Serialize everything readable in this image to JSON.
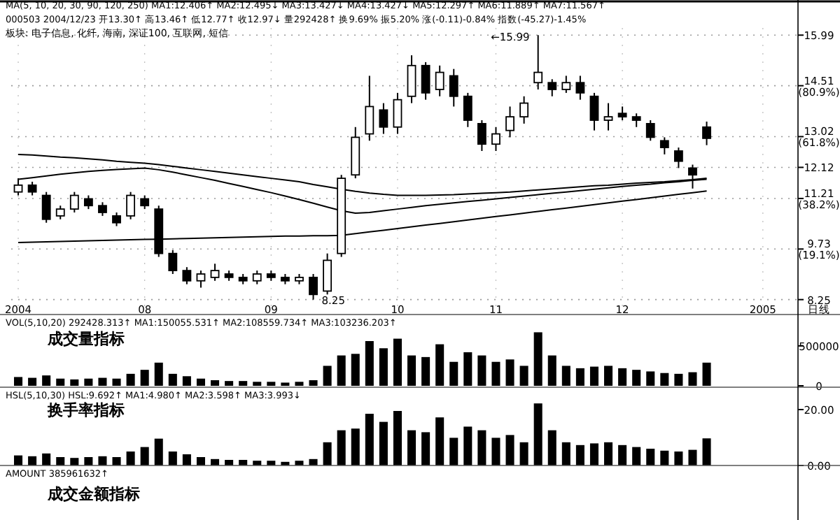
{
  "chart_data": [
    {
      "type": "candlestick",
      "title": "MA(5, 10, 20, 30, 90, 120, 250) MA1:12.406↑ MA2:12.495↓ MA3:13.427↓ MA4:13.427↓ MA5:12.297↑ MA6:11.889↑ MA7:11.567↑",
      "subtitle": "000503 2004/12/23 开13.30↑ 高13.46↑ 低12.77↑ 收12.97↓ 量292428↑ 换9.69% 振5.20% 涨(-0.11)-0.84% 指数(-45.27)-1.45%",
      "categories": [
        "2004",
        null,
        null,
        null,
        null,
        null,
        null,
        null,
        null,
        "08",
        null,
        null,
        null,
        null,
        null,
        null,
        null,
        null,
        "09",
        null,
        null,
        null,
        null,
        null,
        null,
        null,
        null,
        "10",
        null,
        null,
        null,
        null,
        null,
        null,
        "11",
        null,
        null,
        null,
        null,
        null,
        null,
        null,
        null,
        "12",
        null,
        null,
        null,
        null,
        null,
        null,
        null,
        null,
        null,
        "2005",
        null,
        null
      ],
      "ohlc": [
        [
          11.4,
          11.8,
          11.3,
          11.6
        ],
        [
          11.6,
          11.7,
          11.3,
          11.4
        ],
        [
          11.3,
          11.4,
          10.5,
          10.6
        ],
        [
          10.7,
          11.0,
          10.6,
          10.9
        ],
        [
          10.9,
          11.4,
          10.8,
          11.3
        ],
        [
          11.2,
          11.3,
          10.9,
          11.0
        ],
        [
          11.0,
          11.1,
          10.7,
          10.8
        ],
        [
          10.7,
          10.8,
          10.4,
          10.5
        ],
        [
          10.7,
          11.4,
          10.6,
          11.3
        ],
        [
          11.2,
          11.3,
          10.9,
          11.0
        ],
        [
          10.9,
          11.0,
          9.5,
          9.6
        ],
        [
          9.6,
          9.7,
          9.0,
          9.1
        ],
        [
          9.1,
          9.2,
          8.7,
          8.8
        ],
        [
          8.8,
          9.1,
          8.6,
          9.0
        ],
        [
          8.9,
          9.3,
          8.8,
          9.1
        ],
        [
          9.0,
          9.1,
          8.8,
          8.9
        ],
        [
          8.9,
          9.0,
          8.7,
          8.8
        ],
        [
          8.8,
          9.1,
          8.7,
          9.0
        ],
        [
          9.0,
          9.1,
          8.8,
          8.9
        ],
        [
          8.9,
          9.0,
          8.7,
          8.8
        ],
        [
          8.8,
          9.0,
          8.7,
          8.9
        ],
        [
          8.9,
          9.0,
          8.25,
          8.4
        ],
        [
          8.5,
          9.6,
          8.4,
          9.4
        ],
        [
          9.6,
          11.9,
          9.5,
          11.8
        ],
        [
          11.9,
          13.3,
          11.8,
          13.0
        ],
        [
          13.1,
          14.8,
          12.9,
          13.9
        ],
        [
          13.8,
          14.0,
          13.1,
          13.3
        ],
        [
          13.3,
          14.3,
          13.1,
          14.1
        ],
        [
          14.2,
          15.4,
          14.0,
          15.1
        ],
        [
          15.1,
          15.2,
          14.1,
          14.3
        ],
        [
          14.4,
          15.1,
          14.2,
          14.9
        ],
        [
          14.8,
          15.0,
          13.9,
          14.2
        ],
        [
          14.2,
          14.3,
          13.3,
          13.5
        ],
        [
          13.4,
          13.5,
          12.6,
          12.8
        ],
        [
          12.8,
          13.3,
          12.6,
          13.1
        ],
        [
          13.2,
          13.9,
          13.0,
          13.6
        ],
        [
          13.6,
          14.2,
          13.4,
          14.0
        ],
        [
          14.6,
          15.99,
          14.4,
          14.9
        ],
        [
          14.6,
          14.7,
          14.2,
          14.4
        ],
        [
          14.4,
          14.8,
          14.3,
          14.6
        ],
        [
          14.6,
          14.8,
          14.1,
          14.3
        ],
        [
          14.2,
          14.3,
          13.2,
          13.5
        ],
        [
          13.5,
          14.0,
          13.2,
          13.6
        ],
        [
          13.7,
          13.9,
          13.5,
          13.6
        ],
        [
          13.6,
          13.7,
          13.3,
          13.5
        ],
        [
          13.4,
          13.5,
          12.9,
          13.0
        ],
        [
          12.9,
          13.0,
          12.5,
          12.7
        ],
        [
          12.6,
          12.7,
          12.1,
          12.3
        ],
        [
          12.1,
          12.2,
          11.5,
          11.9
        ],
        [
          13.3,
          13.46,
          12.77,
          12.97
        ],
        null,
        null,
        null,
        null,
        null,
        null
      ],
      "series": [
        {
          "type": "line",
          "color": "#000000",
          "values": [
            12.5,
            12.48,
            12.45,
            12.42,
            12.4,
            12.37,
            12.34,
            12.3,
            12.27,
            12.24,
            12.2,
            12.15,
            12.1,
            12.05,
            12.0,
            11.95,
            11.9,
            11.85,
            11.8,
            11.75,
            11.7,
            11.62,
            11.55,
            11.48,
            11.42,
            11.37,
            11.33,
            11.3,
            11.3,
            11.3,
            11.31,
            11.32,
            11.34,
            11.36,
            11.38,
            11.4,
            11.43,
            11.46,
            11.49,
            11.52,
            11.55,
            11.58,
            11.6,
            11.63,
            11.66,
            11.68,
            11.7,
            11.73,
            11.76,
            11.8,
            null,
            null,
            null,
            null,
            null,
            null
          ]
        },
        {
          "type": "line",
          "color": "#000000",
          "values": [
            11.77,
            11.82,
            11.87,
            11.92,
            11.96,
            12.0,
            12.03,
            12.06,
            12.08,
            12.1,
            12.05,
            11.98,
            11.9,
            11.82,
            11.74,
            11.65,
            11.56,
            11.47,
            11.38,
            11.28,
            11.18,
            11.07,
            10.96,
            10.85,
            10.78,
            10.8,
            10.85,
            10.9,
            10.95,
            11.0,
            11.04,
            11.08,
            11.12,
            11.16,
            11.2,
            11.24,
            11.28,
            11.32,
            11.36,
            11.4,
            11.44,
            11.48,
            11.52,
            11.56,
            11.6,
            11.63,
            11.67,
            11.7,
            11.74,
            11.77,
            null,
            null,
            null,
            null,
            null,
            null
          ]
        },
        {
          "type": "line",
          "color": "#000000",
          "values": [
            9.92,
            9.93,
            9.94,
            9.95,
            9.96,
            9.97,
            9.98,
            9.99,
            10.0,
            10.01,
            10.02,
            10.03,
            10.04,
            10.05,
            10.06,
            10.07,
            10.08,
            10.09,
            10.1,
            10.11,
            10.11,
            10.12,
            10.12,
            10.13,
            10.18,
            10.23,
            10.28,
            10.33,
            10.38,
            10.43,
            10.48,
            10.53,
            10.58,
            10.63,
            10.68,
            10.73,
            10.78,
            10.83,
            10.88,
            10.93,
            10.98,
            11.03,
            11.08,
            11.13,
            11.18,
            11.23,
            11.28,
            11.33,
            11.38,
            11.43,
            null,
            null,
            null,
            null,
            null,
            null
          ]
        }
      ],
      "ylim": [
        8.1,
        16.2
      ],
      "yticks": [
        8.25,
        {
          "value": 9.73,
          "label": "9.73 (19.1%)"
        },
        {
          "value": 11.21,
          "label": "11.21 (38.2%)"
        },
        12.12,
        {
          "value": 13.02,
          "label": "13.02 (61.8%)"
        },
        {
          "value": 14.51,
          "label": "14.51 (80.9%)"
        },
        15.99
      ],
      "grid": true,
      "annotations": [
        "←15.99",
        "8.25",
        "板块: 电子信息, 化纤, 海南, 深证100, 互联网, 短信",
        "日线"
      ]
    },
    {
      "type": "bar",
      "title": "VOL(5,10,20) 292428.313↑ MA1:150055.531↑ MA2:108559.734↑ MA3:103236.203↑",
      "annotations": [
        "成交量指标"
      ],
      "categories": [
        "2004",
        null,
        null,
        null,
        null,
        null,
        null,
        null,
        null,
        "08",
        null,
        null,
        null,
        null,
        null,
        null,
        null,
        null,
        "09",
        null,
        null,
        null,
        null,
        null,
        null,
        null,
        null,
        "10",
        null,
        null,
        null,
        null,
        null,
        null,
        "11",
        null,
        null,
        null,
        null,
        null,
        null,
        null,
        null,
        "12",
        null,
        null,
        null,
        null,
        null,
        null,
        null,
        null,
        null,
        "2005",
        null,
        null
      ],
      "color": "#000000",
      "values": [
        110000,
        100000,
        130000,
        90000,
        80000,
        90000,
        100000,
        90000,
        150000,
        200000,
        290000,
        150000,
        120000,
        90000,
        70000,
        60000,
        60000,
        50000,
        50000,
        40000,
        50000,
        70000,
        250000,
        380000,
        400000,
        560000,
        470000,
        590000,
        380000,
        360000,
        520000,
        300000,
        420000,
        380000,
        300000,
        330000,
        250000,
        670000,
        380000,
        250000,
        220000,
        240000,
        250000,
        220000,
        200000,
        180000,
        160000,
        150000,
        170000,
        290000,
        null,
        null,
        null,
        null,
        null,
        null
      ],
      "ylim": [
        0,
        700000
      ],
      "yticks": [
        0,
        500000
      ],
      "tick_labels": "y"
    },
    {
      "type": "bar",
      "title": "HSL(5,10,30) HSL:9.692↑ MA1:4.980↑ MA2:3.598↑ MA3:3.993↓",
      "annotations": [
        "换手率指标"
      ],
      "categories": [
        "2004",
        null,
        null,
        null,
        null,
        null,
        null,
        null,
        null,
        "08",
        null,
        null,
        null,
        null,
        null,
        null,
        null,
        null,
        "09",
        null,
        null,
        null,
        null,
        null,
        null,
        null,
        null,
        "10",
        null,
        null,
        null,
        null,
        null,
        null,
        "11",
        null,
        null,
        null,
        null,
        null,
        null,
        null,
        null,
        "12",
        null,
        null,
        null,
        null,
        null,
        null,
        null,
        null,
        null,
        "2005",
        null,
        null
      ],
      "color": "#000000",
      "values": [
        3.6,
        3.3,
        4.3,
        3.0,
        2.7,
        3.0,
        3.3,
        3.0,
        5.0,
        6.6,
        9.6,
        5.0,
        4.0,
        3.0,
        2.3,
        2.0,
        2.0,
        1.7,
        1.7,
        1.3,
        1.7,
        2.3,
        8.3,
        12.6,
        13.2,
        18.5,
        15.6,
        19.5,
        12.6,
        11.9,
        17.2,
        9.9,
        13.9,
        12.6,
        9.9,
        10.9,
        8.3,
        22.2,
        12.6,
        8.3,
        7.3,
        7.9,
        8.3,
        7.3,
        6.6,
        6.0,
        5.3,
        5.0,
        5.6,
        9.7,
        null,
        null,
        null,
        null,
        null,
        null
      ],
      "ylim": [
        0,
        23
      ],
      "yticks": [
        {
          "value": 0,
          "label": "0.00"
        },
        {
          "value": 20,
          "label": "20.00"
        }
      ],
      "tick_labels": "y"
    },
    {
      "type": "other",
      "title": "AMOUNT 385961632↑",
      "annotations": [
        "成交金额指标"
      ]
    }
  ]
}
